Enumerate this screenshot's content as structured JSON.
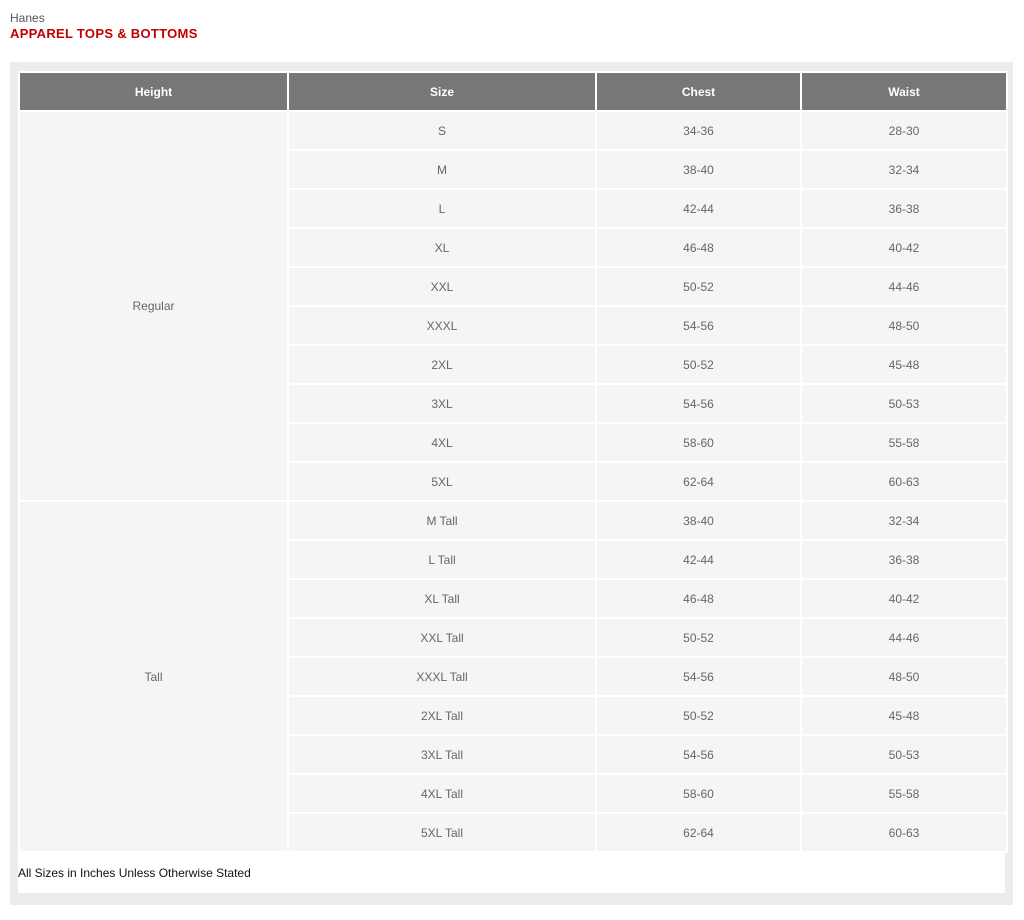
{
  "brand": "Hanes",
  "title": "APPAREL TOPS & BOTTOMS",
  "columns": [
    "Height",
    "Size",
    "Chest",
    "Waist"
  ],
  "groups": [
    {
      "height": "Regular",
      "rows": [
        [
          "S",
          "34-36",
          "28-30"
        ],
        [
          "M",
          "38-40",
          "32-34"
        ],
        [
          "L",
          "42-44",
          "36-38"
        ],
        [
          "XL",
          "46-48",
          "40-42"
        ],
        [
          "XXL",
          "50-52",
          "44-46"
        ],
        [
          "XXXL",
          "54-56",
          "48-50"
        ],
        [
          "2XL",
          "50-52",
          "45-48"
        ],
        [
          "3XL",
          "54-56",
          "50-53"
        ],
        [
          "4XL",
          "58-60",
          "55-58"
        ],
        [
          "5XL",
          "62-64",
          "60-63"
        ]
      ]
    },
    {
      "height": "Tall",
      "rows": [
        [
          "M Tall",
          "38-40",
          "32-34"
        ],
        [
          "L Tall",
          "42-44",
          "36-38"
        ],
        [
          "XL Tall",
          "46-48",
          "40-42"
        ],
        [
          "XXL Tall",
          "50-52",
          "44-46"
        ],
        [
          "XXXL Tall",
          "54-56",
          "48-50"
        ],
        [
          "2XL Tall",
          "50-52",
          "45-48"
        ],
        [
          "3XL Tall",
          "54-56",
          "50-53"
        ],
        [
          "4XL Tall",
          "58-60",
          "55-58"
        ],
        [
          "5XL Tall",
          "62-64",
          "60-63"
        ]
      ]
    }
  ],
  "footnote": "All Sizes in Inches Unless Otherwise Stated"
}
